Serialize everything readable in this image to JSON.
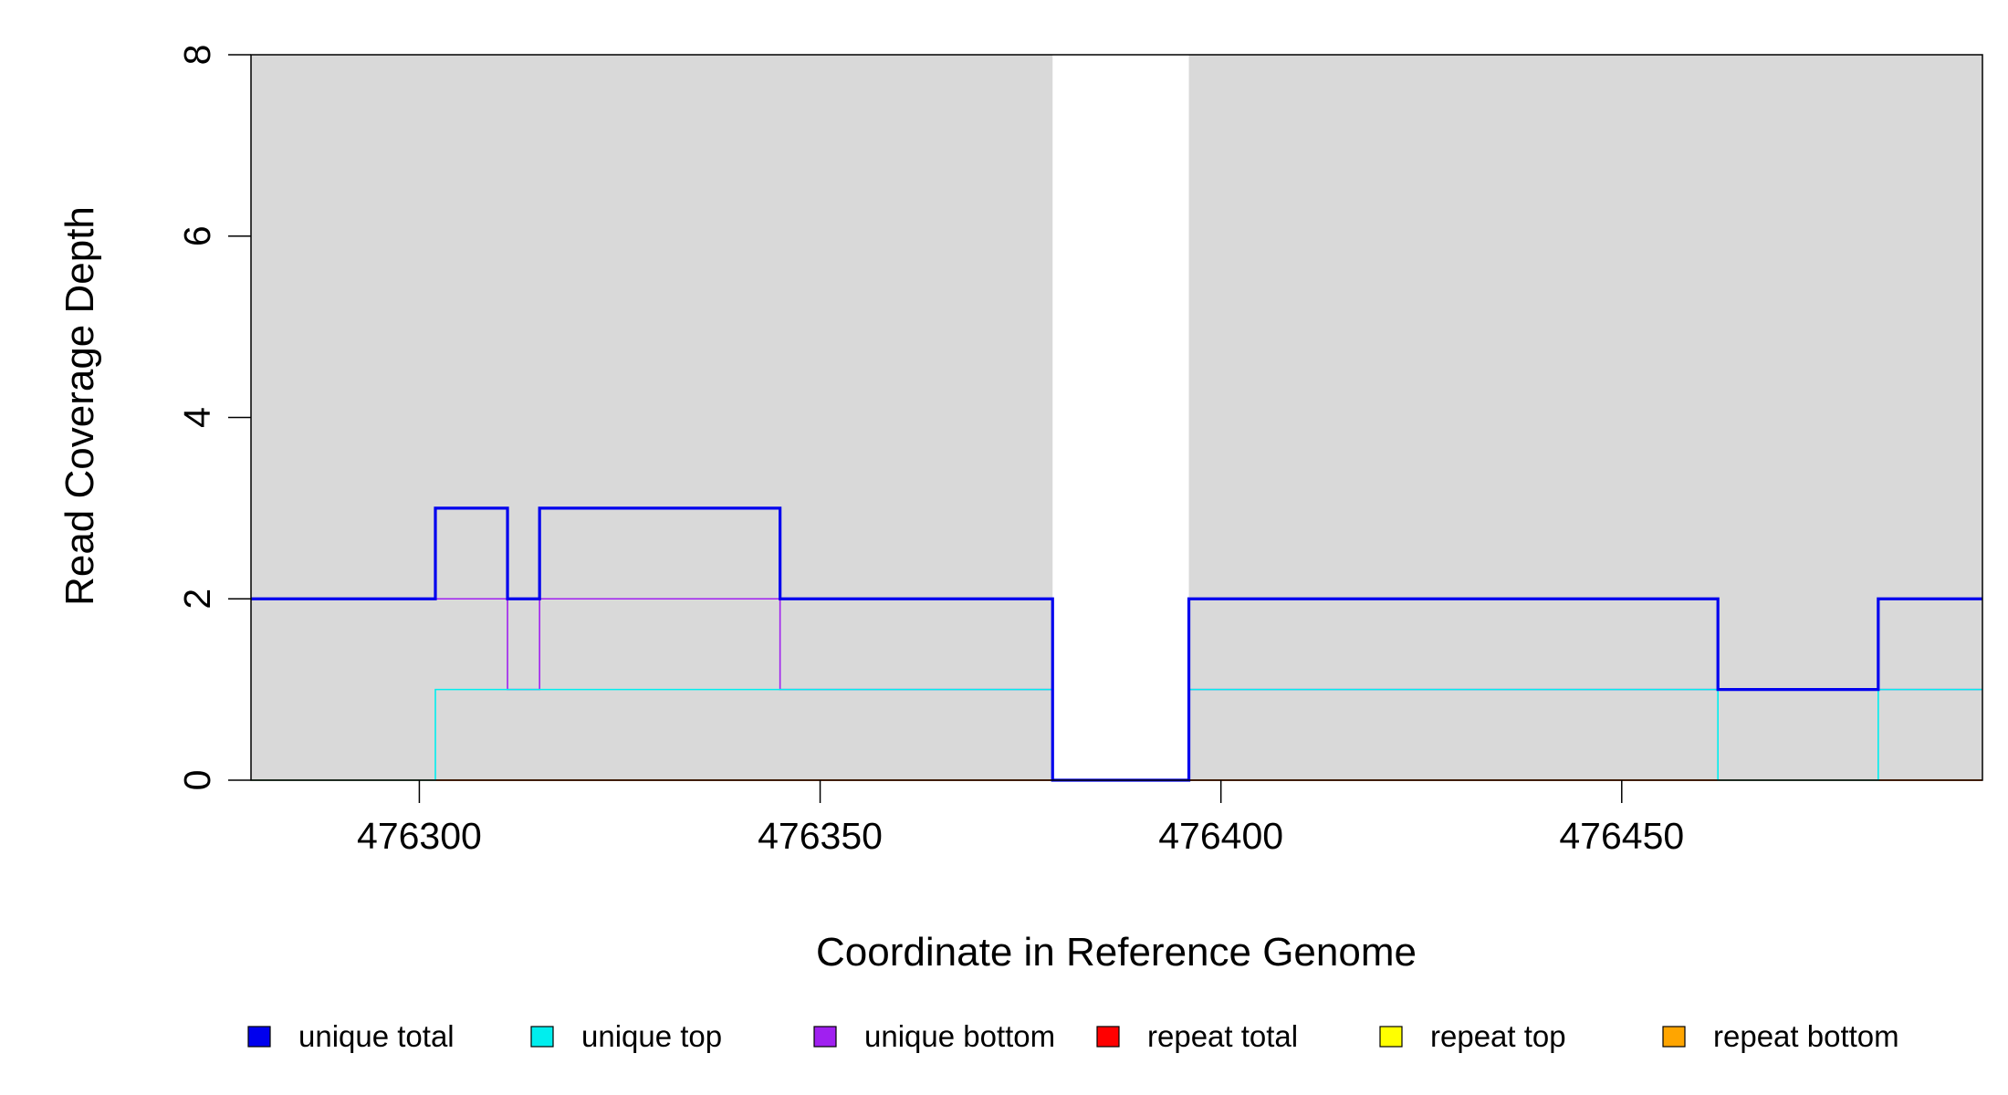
{
  "chart_data": {
    "type": "line",
    "title": "",
    "xlabel": "Coordinate in Reference Genome",
    "ylabel": "Read Coverage Depth",
    "xlim": [
      476279,
      476495
    ],
    "ylim": [
      0,
      8
    ],
    "x_ticks": [
      476300,
      476350,
      476400,
      476450
    ],
    "y_ticks": [
      0,
      2,
      4,
      6,
      8
    ],
    "x_tick_labels": [
      "476300",
      "476350",
      "476400",
      "476450"
    ],
    "y_tick_labels": [
      "0",
      "2",
      "4",
      "6",
      "8"
    ],
    "background_color": "#d9d9d9",
    "gap_regions": [
      [
        476379,
        476396
      ]
    ],
    "grid": false,
    "legend_position": "bottom",
    "step": "post",
    "series": [
      {
        "name": "unique total",
        "color": "#0000ee",
        "x": [
          476279,
          476302,
          476311,
          476315,
          476345,
          476379,
          476396,
          476462,
          476482,
          476495
        ],
        "values": [
          2,
          3,
          2,
          3,
          2,
          0,
          2,
          1,
          2,
          2
        ]
      },
      {
        "name": "unique top",
        "color": "#00eeee",
        "x": [
          476279,
          476302,
          476379,
          476396,
          476462,
          476482,
          476495
        ],
        "values": [
          0,
          1,
          0,
          1,
          0,
          1,
          1
        ]
      },
      {
        "name": "unique bottom",
        "color": "#a020f0",
        "x": [
          476279,
          476311,
          476315,
          476345,
          476379,
          476396,
          476495
        ],
        "values": [
          2,
          1,
          2,
          1,
          0,
          1,
          1
        ]
      },
      {
        "name": "repeat total",
        "color": "#ff0000",
        "x": [
          476279,
          476495
        ],
        "values": [
          0,
          0
        ]
      },
      {
        "name": "repeat top",
        "color": "#ffff00",
        "x": [
          476279,
          476495
        ],
        "values": [
          0,
          0
        ]
      },
      {
        "name": "repeat bottom",
        "color": "#ffa500",
        "x": [
          476279,
          476495
        ],
        "values": [
          0,
          0
        ]
      }
    ]
  }
}
